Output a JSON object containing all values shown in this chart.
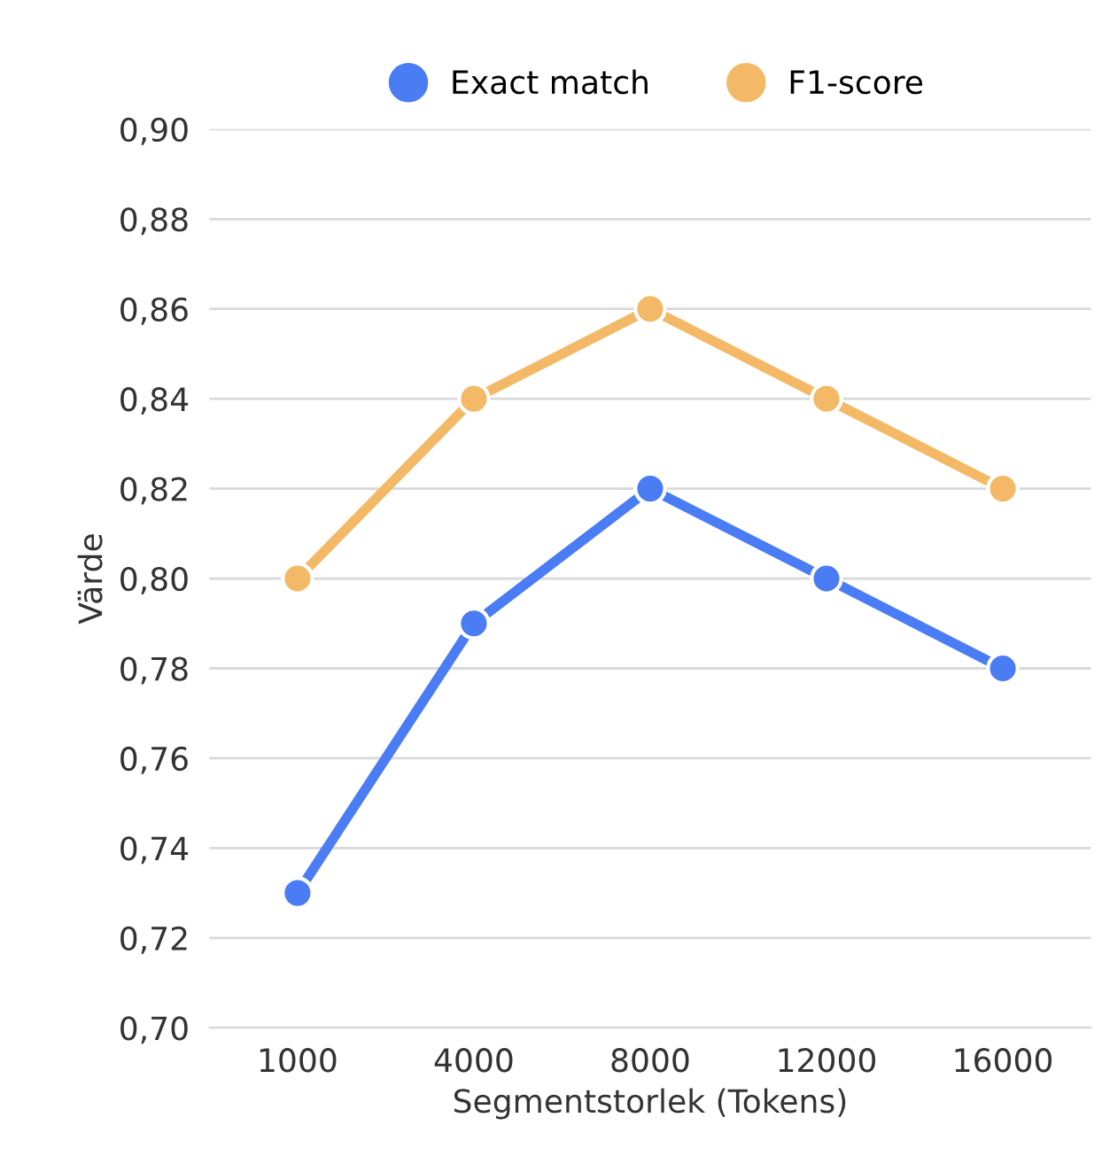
{
  "chart_data": {
    "type": "line",
    "xlabel": "Segmentstorlek (Tokens)",
    "ylabel": "Värde",
    "categories": [
      "1000",
      "4000",
      "8000",
      "12000",
      "16000"
    ],
    "series": [
      {
        "name": "Exact match",
        "color": "#4a7cf4",
        "values": [
          0.73,
          0.79,
          0.82,
          0.8,
          0.78
        ]
      },
      {
        "name": "F1-score",
        "color": "#f4b967",
        "values": [
          0.8,
          0.84,
          0.86,
          0.84,
          0.82
        ]
      }
    ],
    "ylim": [
      0.7,
      0.9
    ],
    "yticks": [
      {
        "value": 0.7,
        "label": "0,70"
      },
      {
        "value": 0.72,
        "label": "0,72"
      },
      {
        "value": 0.74,
        "label": "0,74"
      },
      {
        "value": 0.76,
        "label": "0,76"
      },
      {
        "value": 0.78,
        "label": "0,78"
      },
      {
        "value": 0.8,
        "label": "0,80"
      },
      {
        "value": 0.82,
        "label": "0,82"
      },
      {
        "value": 0.84,
        "label": "0,84"
      },
      {
        "value": 0.86,
        "label": "0,86"
      },
      {
        "value": 0.88,
        "label": "0,88"
      },
      {
        "value": 0.9,
        "label": "0,90"
      }
    ],
    "grid": "y",
    "legend": "top",
    "marker": "circle",
    "line_style": "solid"
  }
}
